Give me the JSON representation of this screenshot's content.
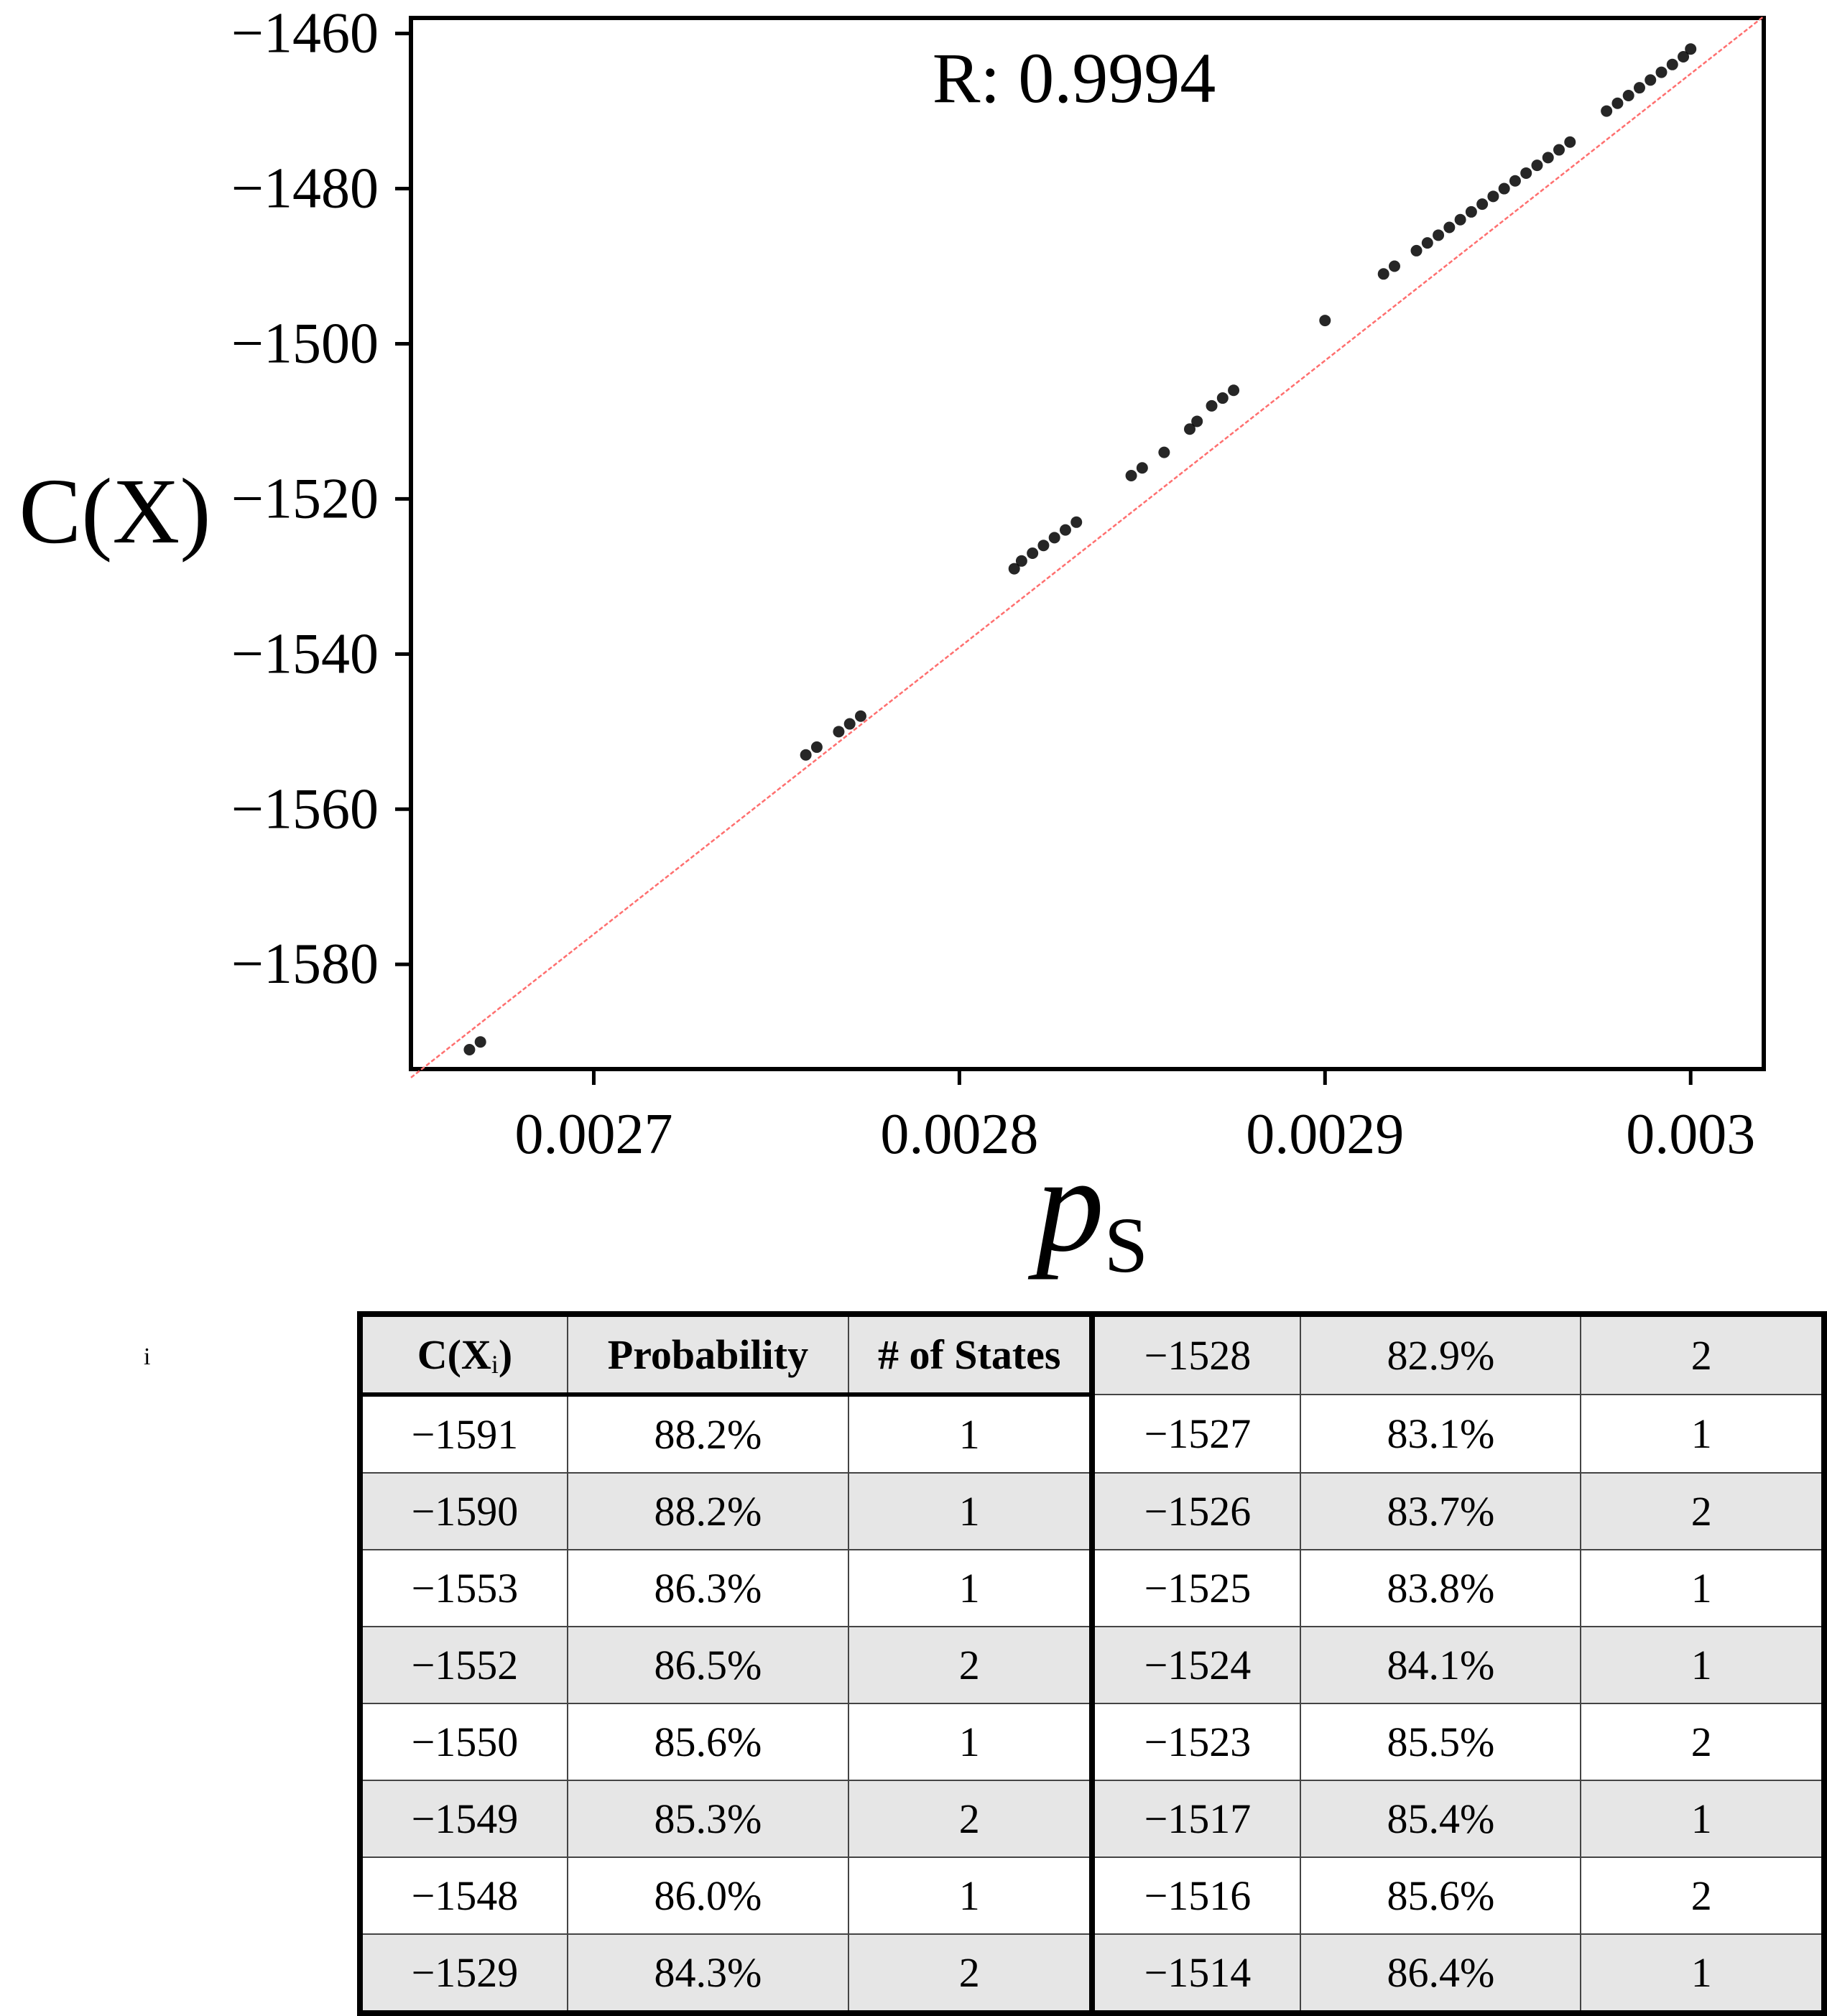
{
  "chart_data": {
    "type": "scatter",
    "title": "",
    "annotation": "R: 0.9994",
    "xlabel": "p",
    "xlabel_sub": "S",
    "ylabel": "C(X)",
    "xlim": [
      0.00265,
      0.00302
    ],
    "ylim": [
      -1593.5,
      -1458
    ],
    "xticks": [
      0.0027,
      0.0028,
      0.0029,
      0.003
    ],
    "xtick_labels": [
      "0.0027",
      "0.0028",
      "0.0029",
      "0.003"
    ],
    "yticks": [
      -1460,
      -1480,
      -1500,
      -1520,
      -1540,
      -1560,
      -1580
    ],
    "ytick_labels": [
      "−1460",
      "−1480",
      "−1500",
      "−1520",
      "−1540",
      "−1560",
      "−1580"
    ],
    "colors": {
      "points": "#000000",
      "fit_line": "#ff6f6f"
    },
    "fit_line": {
      "x": [
        0.00265,
        0.00302
      ],
      "y": [
        -1594.6,
        -1457.8
      ]
    },
    "points": [
      {
        "x": 0.002666,
        "y": -1591
      },
      {
        "x": 0.002669,
        "y": -1590
      },
      {
        "x": 0.002758,
        "y": -1553
      },
      {
        "x": 0.002761,
        "y": -1552
      },
      {
        "x": 0.002767,
        "y": -1550
      },
      {
        "x": 0.00277,
        "y": -1549
      },
      {
        "x": 0.002773,
        "y": -1548
      },
      {
        "x": 0.002815,
        "y": -1529
      },
      {
        "x": 0.002817,
        "y": -1528
      },
      {
        "x": 0.00282,
        "y": -1527
      },
      {
        "x": 0.002823,
        "y": -1526
      },
      {
        "x": 0.002826,
        "y": -1525
      },
      {
        "x": 0.002829,
        "y": -1524
      },
      {
        "x": 0.002832,
        "y": -1523
      },
      {
        "x": 0.002847,
        "y": -1517
      },
      {
        "x": 0.00285,
        "y": -1516
      },
      {
        "x": 0.002856,
        "y": -1514
      },
      {
        "x": 0.002863,
        "y": -1511
      },
      {
        "x": 0.002865,
        "y": -1510
      },
      {
        "x": 0.002869,
        "y": -1508
      },
      {
        "x": 0.002872,
        "y": -1507
      },
      {
        "x": 0.002875,
        "y": -1506
      },
      {
        "x": 0.0029,
        "y": -1497
      },
      {
        "x": 0.002916,
        "y": -1491
      },
      {
        "x": 0.002919,
        "y": -1490
      },
      {
        "x": 0.002925,
        "y": -1488
      },
      {
        "x": 0.002928,
        "y": -1487
      },
      {
        "x": 0.002931,
        "y": -1486
      },
      {
        "x": 0.002934,
        "y": -1485
      },
      {
        "x": 0.002937,
        "y": -1484
      },
      {
        "x": 0.00294,
        "y": -1483
      },
      {
        "x": 0.002943,
        "y": -1482
      },
      {
        "x": 0.002946,
        "y": -1481
      },
      {
        "x": 0.002949,
        "y": -1480
      },
      {
        "x": 0.002952,
        "y": -1479
      },
      {
        "x": 0.002955,
        "y": -1478
      },
      {
        "x": 0.002958,
        "y": -1477
      },
      {
        "x": 0.002961,
        "y": -1476
      },
      {
        "x": 0.002964,
        "y": -1475
      },
      {
        "x": 0.002967,
        "y": -1474
      },
      {
        "x": 0.002977,
        "y": -1470
      },
      {
        "x": 0.00298,
        "y": -1469
      },
      {
        "x": 0.002983,
        "y": -1468
      },
      {
        "x": 0.002986,
        "y": -1467
      },
      {
        "x": 0.002989,
        "y": -1466
      },
      {
        "x": 0.002992,
        "y": -1465
      },
      {
        "x": 0.002995,
        "y": -1464
      },
      {
        "x": 0.002998,
        "y": -1463
      },
      {
        "x": 0.003,
        "y": -1462
      }
    ]
  },
  "table": {
    "headers": [
      "C(X",
      "i",
      ")",
      "Probability",
      "# of States"
    ],
    "left_rows": [
      [
        "−1591",
        "88.2%",
        "1"
      ],
      [
        "−1590",
        "88.2%",
        "1"
      ],
      [
        "−1553",
        "86.3%",
        "1"
      ],
      [
        "−1552",
        "86.5%",
        "2"
      ],
      [
        "−1550",
        "85.6%",
        "1"
      ],
      [
        "−1549",
        "85.3%",
        "2"
      ],
      [
        "−1548",
        "86.0%",
        "1"
      ],
      [
        "−1529",
        "84.3%",
        "2"
      ]
    ],
    "right_rows": [
      [
        "−1528",
        "82.9%",
        "2"
      ],
      [
        "−1527",
        "83.1%",
        "1"
      ],
      [
        "−1526",
        "83.7%",
        "2"
      ],
      [
        "−1525",
        "83.8%",
        "1"
      ],
      [
        "−1524",
        "84.1%",
        "1"
      ],
      [
        "−1523",
        "85.5%",
        "2"
      ],
      [
        "−1517",
        "85.4%",
        "1"
      ],
      [
        "−1516",
        "85.6%",
        "2"
      ],
      [
        "−1514",
        "86.4%",
        "1"
      ]
    ]
  },
  "stray_mark": "i"
}
